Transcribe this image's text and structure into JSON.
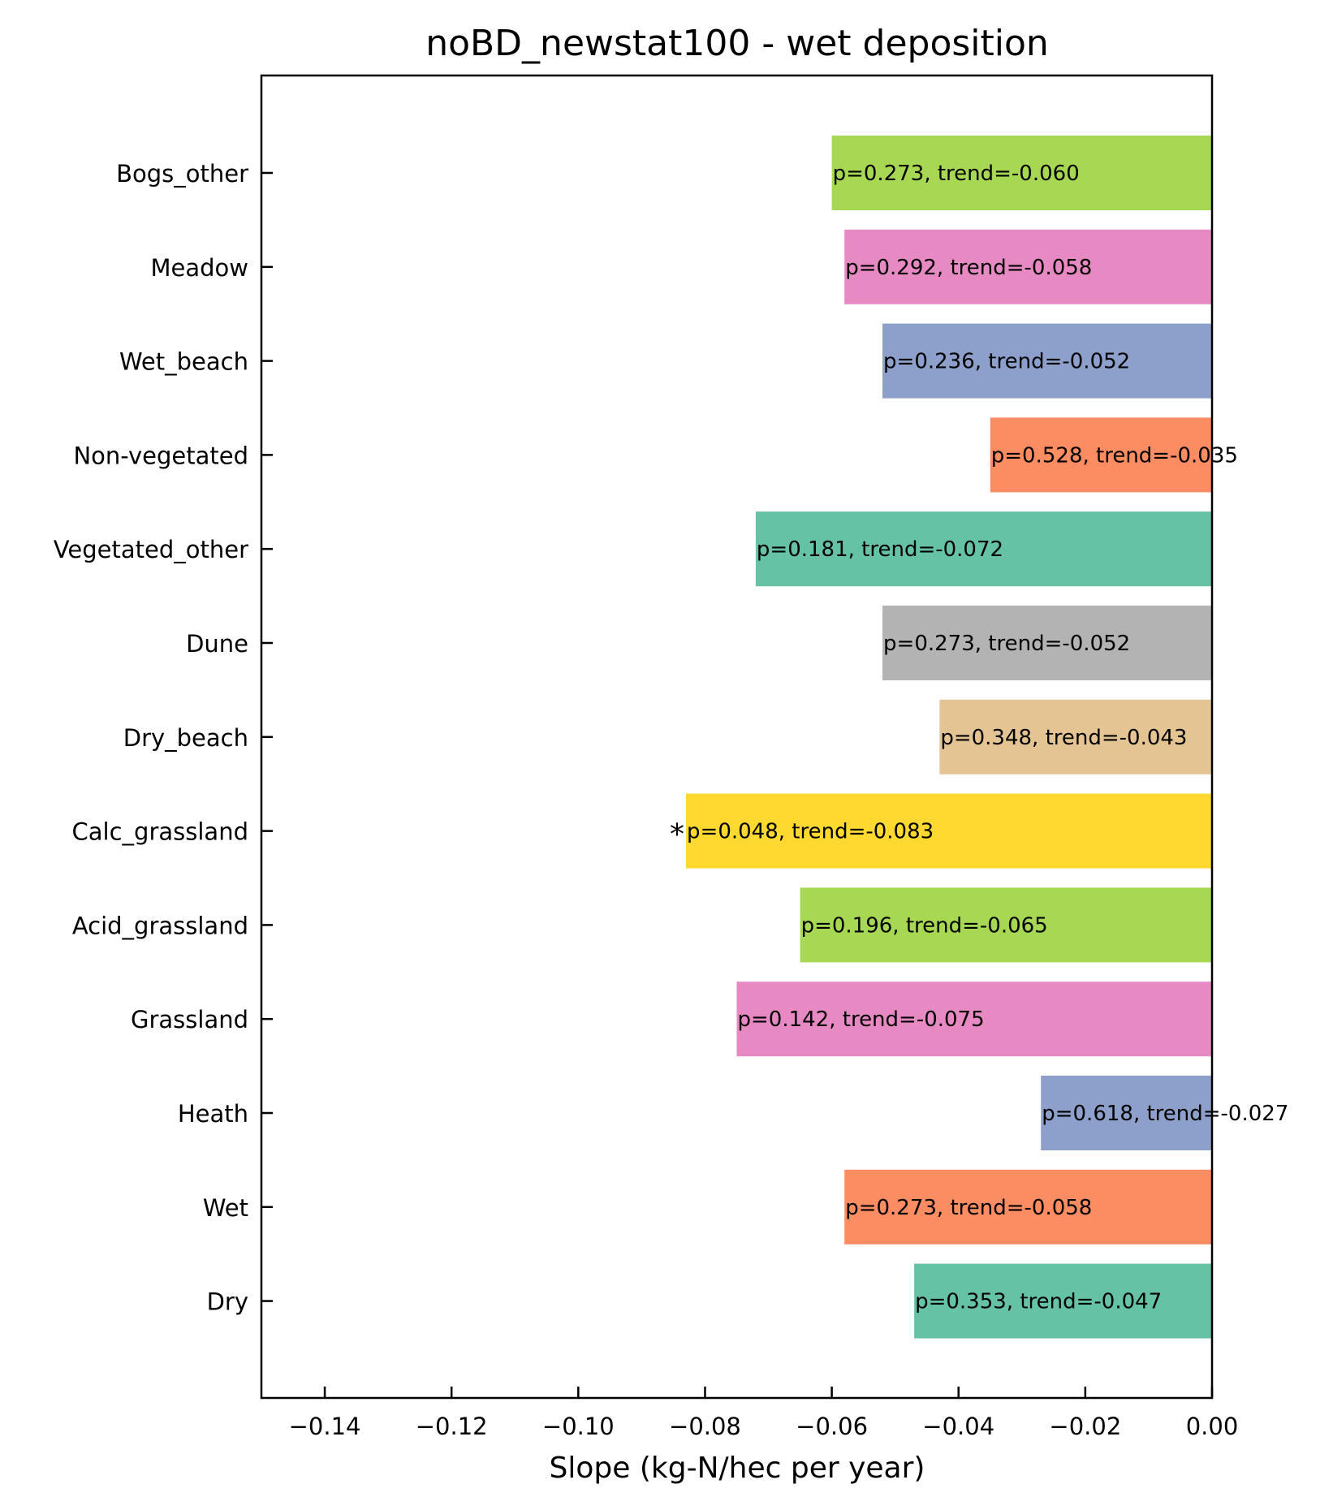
{
  "chart_data": {
    "type": "bar",
    "orientation": "horizontal",
    "title": "noBD_newstat100 - wet deposition",
    "xlabel": "Slope (kg-N/hec per year)",
    "ylabel": "",
    "xlim": [
      -0.15,
      0.0
    ],
    "xticks": [
      -0.14,
      -0.12,
      -0.1,
      -0.08,
      -0.06,
      -0.04,
      -0.02,
      0.0
    ],
    "xtick_labels": [
      "−0.14",
      "−0.12",
      "−0.10",
      "−0.08",
      "−0.06",
      "−0.04",
      "−0.02",
      "0.00"
    ],
    "grid": false,
    "categories": [
      "Bogs_other",
      "Meadow",
      "Wet_beach",
      "Non-vegetated",
      "Vegetated_other",
      "Dune",
      "Dry_beach",
      "Calc_grassland",
      "Acid_grassland",
      "Grassland",
      "Heath",
      "Wet",
      "Dry"
    ],
    "values": [
      -0.06,
      -0.058,
      -0.052,
      -0.035,
      -0.072,
      -0.052,
      -0.043,
      -0.083,
      -0.065,
      -0.075,
      -0.027,
      -0.058,
      -0.047
    ],
    "colors": [
      "#a6d854",
      "#e78ac3",
      "#8da0cb",
      "#fc8d62",
      "#66c2a5",
      "#b3b3b3",
      "#e5c494",
      "#ffd92f",
      "#a6d854",
      "#e78ac3",
      "#8da0cb",
      "#fc8d62",
      "#66c2a5"
    ],
    "bar_labels": [
      "p=0.273, trend=-0.060",
      "p=0.292, trend=-0.058",
      "p=0.236, trend=-0.052",
      "p=0.528, trend=-0.035",
      "p=0.181, trend=-0.072",
      "p=0.273, trend=-0.052",
      "p=0.348, trend=-0.043",
      "p=0.048, trend=-0.083",
      "p=0.196, trend=-0.065",
      "p=0.142, trend=-0.075",
      "p=0.618, trend=-0.027",
      "p=0.273, trend=-0.058",
      "p=0.353, trend=-0.047"
    ],
    "significance_markers": [
      "",
      "",
      "",
      "",
      "",
      "",
      "",
      "*",
      "",
      "",
      "",
      "",
      ""
    ]
  }
}
